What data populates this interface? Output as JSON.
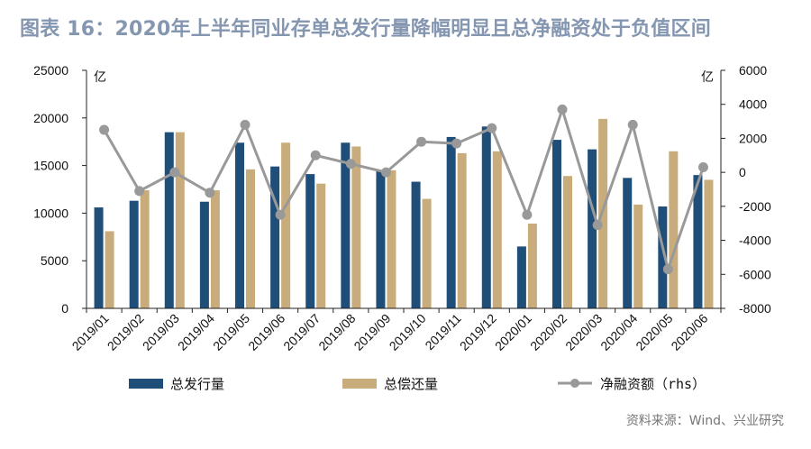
{
  "title": "图表 16：2020年上半年同业存单总发行量降幅明显且总净融资处于负值区间",
  "source": "资料来源：Wind、兴业研究",
  "colors": {
    "issue": "#1f4e79",
    "repay": "#c8ac7c",
    "net": "#999999",
    "title": "#8496b0"
  },
  "chart_data": {
    "type": "bar",
    "categories": [
      "2019/01",
      "2019/02",
      "2019/03",
      "2019/04",
      "2019/05",
      "2019/06",
      "2019/07",
      "2019/08",
      "2019/09",
      "2019/10",
      "2019/11",
      "2019/12",
      "2020/01",
      "2020/02",
      "2020/03",
      "2020/04",
      "2020/05",
      "2020/06"
    ],
    "y_left": {
      "unit": "亿",
      "ylim": [
        0,
        25000
      ],
      "ticks": [
        "0",
        "5000",
        "10000",
        "15000",
        "20000",
        "25000"
      ]
    },
    "y_right": {
      "unit": "亿",
      "ylim": [
        -8000,
        6000
      ],
      "ticks": [
        "-8000",
        "-6000",
        "-4000",
        "-2000",
        "0",
        "2000",
        "4000",
        "6000"
      ]
    },
    "series": [
      {
        "name": "总发行量",
        "type": "bar",
        "axis": "left",
        "values": [
          10600,
          11300,
          18500,
          11200,
          17400,
          14900,
          14100,
          17400,
          14500,
          13300,
          18000,
          19100,
          6500,
          17700,
          16700,
          13700,
          10700,
          14000
        ]
      },
      {
        "name": "总偿还量",
        "type": "bar",
        "axis": "left",
        "values": [
          8100,
          12400,
          18500,
          12400,
          14600,
          17400,
          13100,
          17000,
          14500,
          11500,
          16300,
          16500,
          8900,
          13900,
          19900,
          10900,
          16500,
          13500
        ]
      },
      {
        "name": "净融资额（rhs）",
        "type": "line",
        "axis": "right",
        "values": [
          2500,
          -1100,
          0,
          -1200,
          2800,
          -2500,
          1000,
          500,
          0,
          1800,
          1700,
          2600,
          -2500,
          3700,
          -3100,
          2800,
          -5700,
          300
        ]
      }
    ],
    "grid": false,
    "legend": "bottom"
  }
}
